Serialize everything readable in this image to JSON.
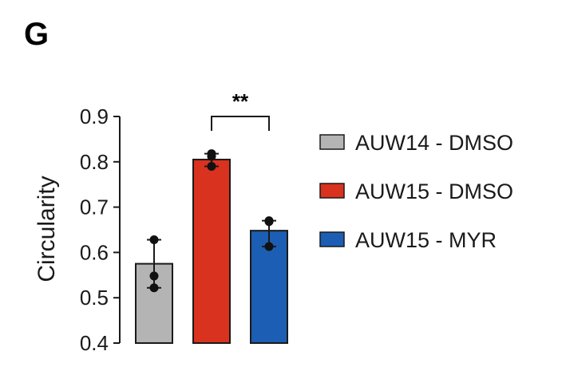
{
  "panel_label": "G",
  "colors": {
    "AUW14 - DMSO": "#b4b4b4",
    "AUW15 - DMSO": "#d9321f",
    "AUW15 - MYR": "#1c5eb4",
    "stroke": "#1a1a1a"
  },
  "chart_data": {
    "type": "bar",
    "categories": [
      "AUW14 - DMSO",
      "AUW15 - DMSO",
      "AUW15 - MYR"
    ],
    "values": [
      0.575,
      0.805,
      0.648
    ],
    "error_bars": [
      {
        "low": 0.522,
        "high": 0.628
      },
      {
        "low": 0.79,
        "high": 0.818
      },
      {
        "low": 0.613,
        "high": 0.67
      }
    ],
    "points": [
      [
        0.628,
        0.548,
        0.522
      ],
      [
        0.818,
        0.812,
        0.79
      ],
      [
        0.67,
        0.668,
        0.613
      ]
    ],
    "ylabel": "Circularity",
    "ylim": [
      0.4,
      0.9
    ],
    "yticks": [
      "0.4",
      "0.5",
      "0.6",
      "0.7",
      "0.8",
      "0.9"
    ],
    "legend": [
      "AUW14 - DMSO",
      "AUW15 - DMSO",
      "AUW15 - MYR"
    ],
    "legend_position": "right",
    "grid": false,
    "annotations": [
      {
        "text": "**",
        "between": [
          1,
          2
        ]
      }
    ]
  }
}
